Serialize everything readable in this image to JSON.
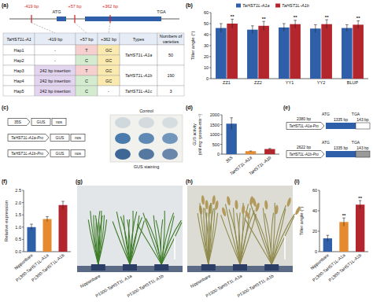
{
  "panel_labels": [
    "(a)",
    "(b)",
    "(c)",
    "(d)",
    "(e)",
    "(f)",
    "(g)",
    "(h)",
    "(i)"
  ],
  "panel_a": {
    "gene": {
      "start": "ATG",
      "stop": "TGA",
      "sites": [
        "-419 bp",
        "+57 bp",
        "+362 bp"
      ]
    },
    "table": {
      "header": [
        "TaHST1L-A1",
        "-419 bp",
        "+57 bp",
        "+362 bp",
        "Types",
        "Numbers of varieties"
      ],
      "rows": [
        [
          "Hap1",
          "-",
          "T",
          "GC",
          "TaHST1L-A1a",
          50
        ],
        [
          "Hap2",
          "-",
          "C",
          "GC",
          null,
          null
        ],
        [
          "Hap3",
          "242 bp insertion",
          "T",
          "GC",
          "TaHST1L-A1b",
          190
        ],
        [
          "Hap4",
          "242 bp insertion",
          "C",
          "GC",
          null,
          null
        ],
        [
          "Hap5",
          "242 bp insertion",
          "C",
          "-",
          "TaHST1L-A1c",
          3
        ]
      ]
    }
  },
  "panel_c": {
    "constructs": [
      [
        "35S",
        "GUS",
        "nos"
      ],
      [
        "TaHST1L-A1a-Pro",
        "GUS",
        "nos"
      ],
      [
        "TaHST1L-A1b-Pro",
        "GUS",
        "nos"
      ]
    ],
    "control": "Control",
    "caption": "GUS staining"
  },
  "panel_e": {
    "constructs": [
      {
        "length": "2380 bp",
        "promoter": "TaHST1L-A1a-Pro",
        "start": "ATG",
        "cds": "1335 bp",
        "stop": "TGA",
        "utr": "143 bp"
      },
      {
        "length": "2622 bp",
        "promoter": "TaHST1L-A1b-Pro",
        "start": "ATG",
        "cds": "1335 bp",
        "stop": "TGA",
        "utr": "143 bp"
      }
    ]
  },
  "panel_g": {
    "labels": [
      "Nipponbare",
      "P1300-TaHST1L-A1a",
      "P1300-TaHST1L-A1b"
    ]
  },
  "panel_h": {
    "labels": [
      "Nipponbare",
      "P1300-TaHST1L-A1a",
      "P1300-TaHST1L-A1b"
    ]
  },
  "chart_data": [
    {
      "type": "bar",
      "y_label": "Tiller angle (°)",
      "categories": [
        "ZZ1",
        "ZZ2",
        "YY1",
        "YY2",
        "BLUP"
      ],
      "series": [
        {
          "name": "TaHST1L-A1a",
          "color": "#2f5fa8",
          "values": [
            46,
            44.5,
            46.5,
            45.5,
            46
          ],
          "errors": [
            4,
            3.5,
            3.5,
            3.5,
            3
          ]
        },
        {
          "name": "TaHST1L-A1b",
          "color": "#b3262d",
          "values": [
            50,
            48,
            49.5,
            49.5,
            49
          ],
          "errors": [
            4,
            4,
            3.5,
            4,
            3.5
          ],
          "annotations": [
            "**",
            "**",
            "**",
            "**",
            "**"
          ]
        }
      ],
      "ylim": [
        0,
        60
      ],
      "yticks": [
        0,
        10,
        20,
        30,
        40,
        50,
        60
      ],
      "legend": "top"
    },
    {
      "type": "bar",
      "y_label": [
        "GUS activity",
        "(nM·mg⁻¹protein·min⁻¹)"
      ],
      "categories": [
        "35S",
        "TaHST1L-A1a",
        "TaHST1L-A1b"
      ],
      "values": [
        1550,
        150,
        260
      ],
      "errors": [
        300,
        10,
        25
      ],
      "colors": [
        "#2f5fa8",
        "#e58a2e",
        "#b3262d"
      ],
      "ylim": [
        0,
        2000
      ],
      "yticks": [
        0,
        500,
        1000,
        1500,
        2000
      ]
    },
    {
      "type": "bar",
      "y_label": "Relative expression",
      "categories": [
        "Nipponbare",
        "P1300-TaHST1L-A1a",
        "P1300-TaHST1L-A1b"
      ],
      "values": [
        1.0,
        1.33,
        1.9
      ],
      "errors": [
        0.12,
        0.1,
        0.15
      ],
      "colors": [
        "#2f5fa8",
        "#e58a2e",
        "#b3262d"
      ],
      "ylim": [
        0,
        2.5
      ],
      "yticks": [
        {
          "value": 0,
          "label": "0.0"
        },
        0.5,
        {
          "value": 1,
          "label": "1.0"
        },
        1.5,
        {
          "value": 2,
          "label": "2.0"
        },
        2.5
      ]
    },
    {
      "type": "bar",
      "y_label": "Tiller angle (°)",
      "categories": [
        "Nipponbare",
        "P1300-TaHST1L-A1a",
        "P1300-TaHST1L-A1b"
      ],
      "values": [
        13,
        29,
        46
      ],
      "errors": [
        3,
        4,
        4
      ],
      "annotations": [
        null,
        "**",
        "**"
      ],
      "colors": [
        "#2f5fa8",
        "#e58a2e",
        "#b3262d"
      ],
      "ylim": [
        0,
        60
      ],
      "yticks": [
        0,
        20,
        40,
        60
      ]
    }
  ]
}
